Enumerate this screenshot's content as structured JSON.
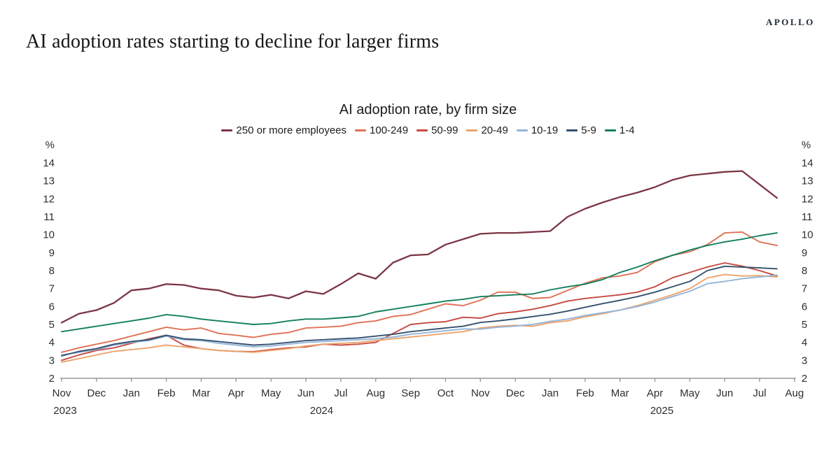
{
  "header": {
    "logo": "APOLLO",
    "title": "AI adoption rates starting to decline for larger firms"
  },
  "chart_data": {
    "type": "line",
    "title": "AI adoption rate, by firm size",
    "unit": "%",
    "ylim": [
      2,
      14
    ],
    "yticks": [
      2,
      3,
      4,
      5,
      6,
      7,
      8,
      9,
      10,
      11,
      12,
      13,
      14
    ],
    "grid": false,
    "legend_position": "top",
    "points_per_month": 2,
    "x_axis": {
      "months": [
        "Nov",
        "Dec",
        "Jan",
        "Feb",
        "Mar",
        "Apr",
        "May",
        "Jun",
        "Jul",
        "Aug",
        "Sep",
        "Oct",
        "Nov",
        "Dec",
        "Jan",
        "Feb",
        "Mar",
        "Apr",
        "May",
        "Jun",
        "Jul",
        "Aug"
      ],
      "year_labels": [
        {
          "text": "2023",
          "month_index": 0.1
        },
        {
          "text": "2024",
          "month_index": 7.45
        },
        {
          "text": "2025",
          "month_index": 17.2
        }
      ]
    },
    "series": [
      {
        "name": "250 or more employees",
        "color": "#7b3645",
        "width": 2.3,
        "values": [
          5.1,
          5.6,
          5.8,
          6.2,
          6.9,
          7.0,
          7.25,
          7.2,
          7.0,
          6.9,
          6.6,
          6.5,
          6.65,
          6.45,
          6.85,
          6.7,
          7.25,
          7.85,
          7.55,
          8.45,
          8.85,
          8.9,
          9.45,
          9.75,
          10.05,
          10.1,
          10.1,
          10.15,
          10.2,
          11.0,
          11.45,
          11.8,
          12.1,
          12.35,
          12.65,
          13.05,
          13.3,
          13.4,
          13.5,
          13.55,
          12.8,
          12.05
        ]
      },
      {
        "name": "100-249",
        "color": "#e07156",
        "width": 1.9,
        "values": [
          3.45,
          3.7,
          3.9,
          4.1,
          4.35,
          4.6,
          4.85,
          4.7,
          4.8,
          4.5,
          4.4,
          4.28,
          4.45,
          4.55,
          4.8,
          4.85,
          4.9,
          5.1,
          5.2,
          5.45,
          5.55,
          5.85,
          6.15,
          6.05,
          6.35,
          6.8,
          6.8,
          6.45,
          6.5,
          6.9,
          7.3,
          7.6,
          7.7,
          7.9,
          8.5,
          8.85,
          9.05,
          9.45,
          10.1,
          10.15,
          9.6,
          9.4
        ]
      },
      {
        "name": "50-99",
        "color": "#c74a42",
        "width": 1.9,
        "values": [
          3.0,
          3.3,
          3.55,
          3.7,
          3.95,
          4.2,
          4.4,
          3.85,
          3.65,
          3.55,
          3.5,
          3.48,
          3.6,
          3.7,
          3.75,
          3.9,
          3.85,
          3.9,
          4.0,
          4.5,
          5.0,
          5.1,
          5.15,
          5.4,
          5.35,
          5.6,
          5.7,
          5.85,
          6.05,
          6.3,
          6.45,
          6.55,
          6.65,
          6.8,
          7.1,
          7.6,
          7.9,
          8.2,
          8.43,
          8.25,
          8.0,
          7.7
        ]
      },
      {
        "name": "20-49",
        "color": "#eda36c",
        "width": 1.9,
        "values": [
          2.9,
          3.1,
          3.3,
          3.5,
          3.6,
          3.7,
          3.85,
          3.75,
          3.65,
          3.55,
          3.5,
          3.45,
          3.55,
          3.65,
          3.8,
          3.9,
          3.95,
          4.0,
          4.1,
          4.2,
          4.3,
          4.4,
          4.5,
          4.6,
          4.8,
          4.9,
          4.95,
          4.9,
          5.1,
          5.2,
          5.43,
          5.6,
          5.8,
          6.05,
          6.35,
          6.65,
          7.0,
          7.59,
          7.78,
          7.7,
          7.72,
          7.65
        ]
      },
      {
        "name": "10-19",
        "color": "#93b5d8",
        "width": 1.9,
        "values": [
          3.3,
          3.45,
          3.6,
          3.85,
          4.0,
          4.1,
          4.35,
          4.15,
          4.1,
          3.95,
          3.85,
          3.75,
          3.8,
          3.9,
          4.0,
          4.05,
          4.1,
          4.15,
          4.2,
          4.3,
          4.45,
          4.55,
          4.65,
          4.75,
          4.74,
          4.85,
          4.91,
          5.0,
          5.17,
          5.3,
          5.5,
          5.65,
          5.8,
          6.0,
          6.25,
          6.55,
          6.85,
          7.27,
          7.4,
          7.55,
          7.65,
          7.75
        ]
      },
      {
        "name": "5-9",
        "color": "#34516f",
        "width": 1.9,
        "values": [
          3.25,
          3.5,
          3.65,
          3.9,
          4.05,
          4.15,
          4.4,
          4.2,
          4.15,
          4.05,
          3.95,
          3.85,
          3.9,
          4.0,
          4.1,
          4.15,
          4.2,
          4.25,
          4.35,
          4.45,
          4.6,
          4.7,
          4.8,
          4.9,
          5.11,
          5.2,
          5.31,
          5.44,
          5.57,
          5.75,
          5.96,
          6.16,
          6.35,
          6.55,
          6.8,
          7.1,
          7.4,
          8.0,
          8.24,
          8.2,
          8.15,
          8.1
        ]
      },
      {
        "name": "1-4",
        "color": "#12805c",
        "width": 1.9,
        "values": [
          4.6,
          4.75,
          4.9,
          5.05,
          5.2,
          5.35,
          5.55,
          5.45,
          5.3,
          5.2,
          5.1,
          5.0,
          5.05,
          5.2,
          5.3,
          5.3,
          5.37,
          5.45,
          5.7,
          5.85,
          6.0,
          6.15,
          6.3,
          6.4,
          6.55,
          6.6,
          6.65,
          6.7,
          6.93,
          7.1,
          7.25,
          7.5,
          7.9,
          8.2,
          8.55,
          8.85,
          9.15,
          9.4,
          9.6,
          9.75,
          9.95,
          10.1
        ]
      }
    ]
  }
}
